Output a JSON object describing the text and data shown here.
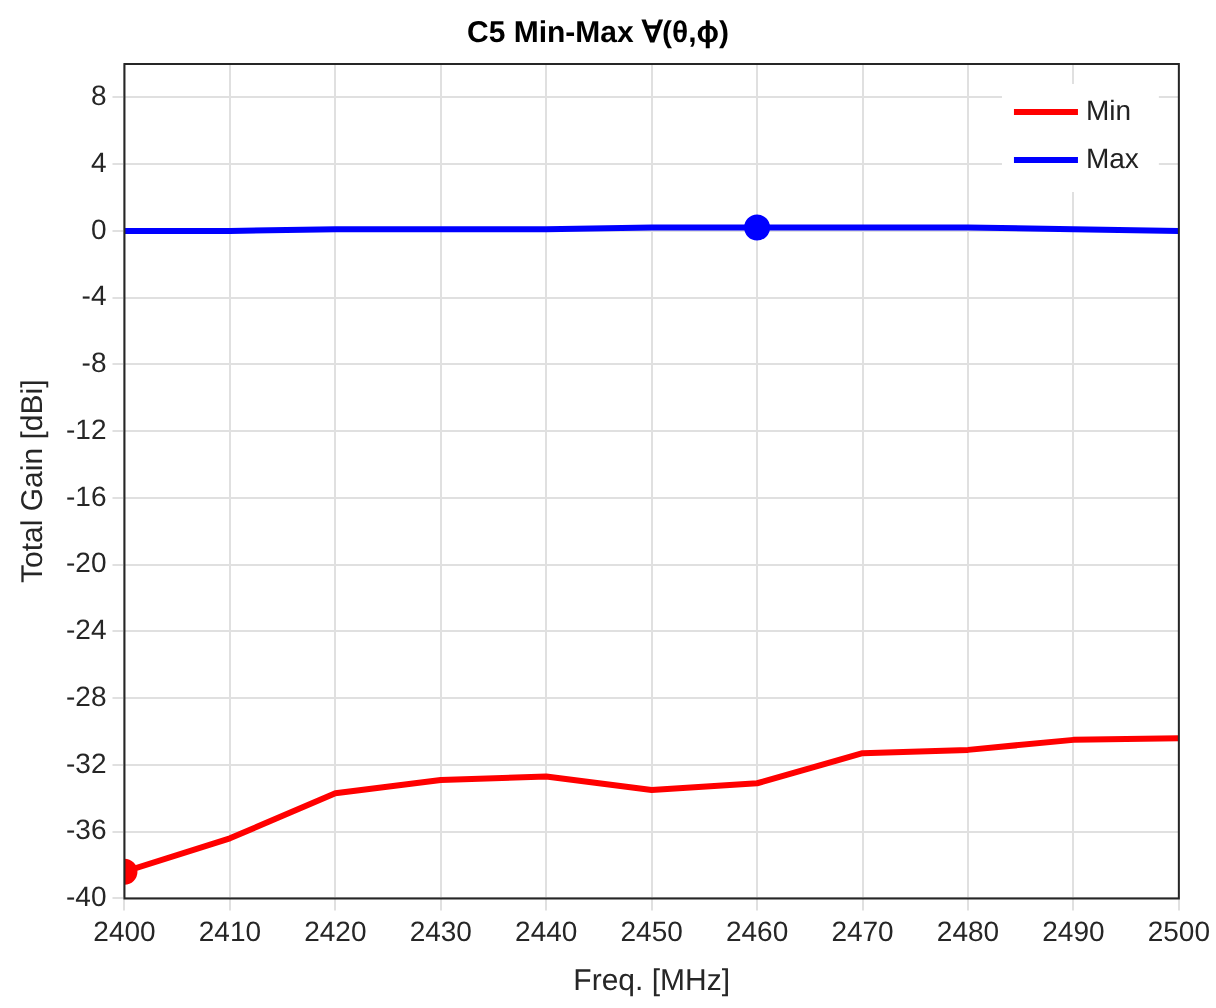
{
  "chart_data": {
    "type": "line",
    "title": "C5 Min-Max ∀(θ,ϕ)",
    "xlabel": "Freq. [MHz]",
    "ylabel": "Total Gain [dBi]",
    "x": [
      2400,
      2410,
      2420,
      2430,
      2440,
      2450,
      2460,
      2470,
      2480,
      2490,
      2500
    ],
    "series": [
      {
        "name": "Min",
        "color": "#ff0000",
        "values": [
          -38.4,
          -36.4,
          -33.7,
          -32.9,
          -32.7,
          -33.5,
          -33.1,
          -31.3,
          -31.1,
          -30.5,
          -30.4
        ]
      },
      {
        "name": "Max",
        "color": "#0000ff",
        "values": [
          0,
          0,
          0.1,
          0.1,
          0.1,
          0.2,
          0.2,
          0.2,
          0.2,
          0.1,
          0
        ]
      },
      {
        "type": "scatter",
        "color": "#ff0000",
        "x": [
          2400
        ],
        "values": [
          -38.4
        ],
        "marker": "circle"
      },
      {
        "type": "scatter",
        "color": "#0000ff",
        "x": [
          2460
        ],
        "values": [
          0.2
        ],
        "marker": "circle"
      }
    ],
    "xlim": [
      2400,
      2500
    ],
    "xticks": [
      2400,
      2410,
      2420,
      2430,
      2440,
      2450,
      2460,
      2470,
      2480,
      2490,
      2500
    ],
    "ylim": [
      -40,
      10
    ],
    "yticks": [
      -40,
      -36,
      -32,
      -28,
      -24,
      -20,
      -16,
      -12,
      -8,
      -4,
      0,
      4,
      8
    ],
    "grid": true,
    "legend": "top right",
    "marker": "none",
    "line_style": "solid"
  }
}
